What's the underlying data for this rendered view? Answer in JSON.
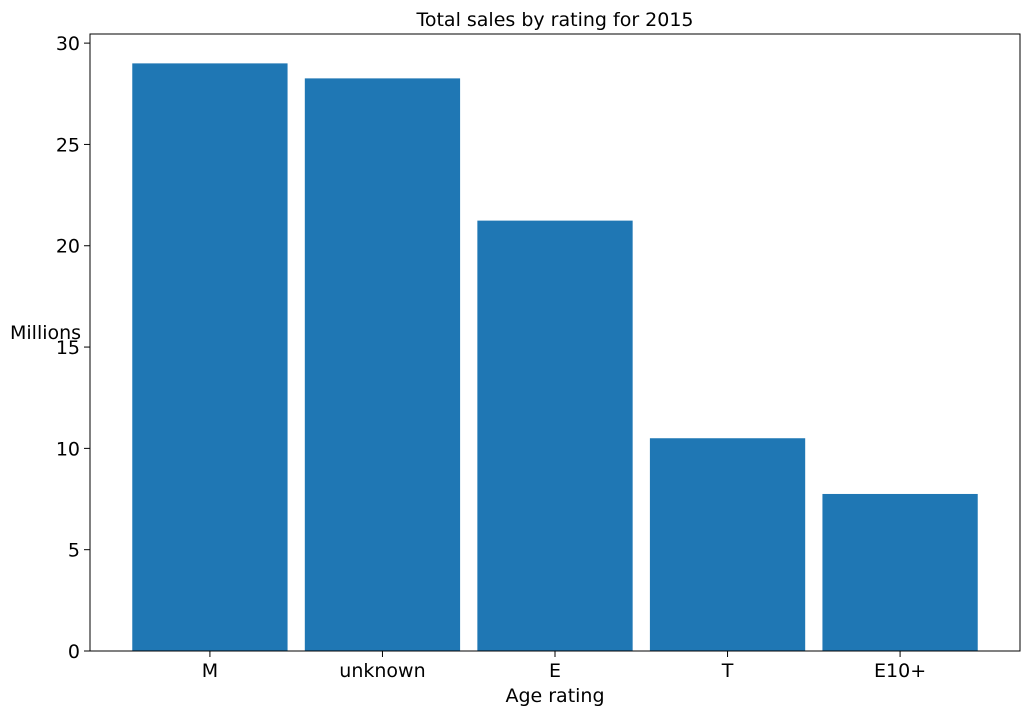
{
  "chart_data": {
    "type": "bar",
    "title": "Total sales by rating for 2015",
    "xlabel": "Age rating",
    "ylabel": "Millions",
    "categories": [
      "M",
      "unknown",
      "E",
      "T",
      "E10+"
    ],
    "values": [
      29.0,
      28.26,
      21.24,
      10.5,
      7.75
    ],
    "yticks": [
      "0",
      "5",
      "10",
      "15",
      "20",
      "25",
      "30"
    ],
    "ylim": [
      0,
      30.45
    ],
    "grid": false,
    "bar_color": "#1f77b4"
  }
}
